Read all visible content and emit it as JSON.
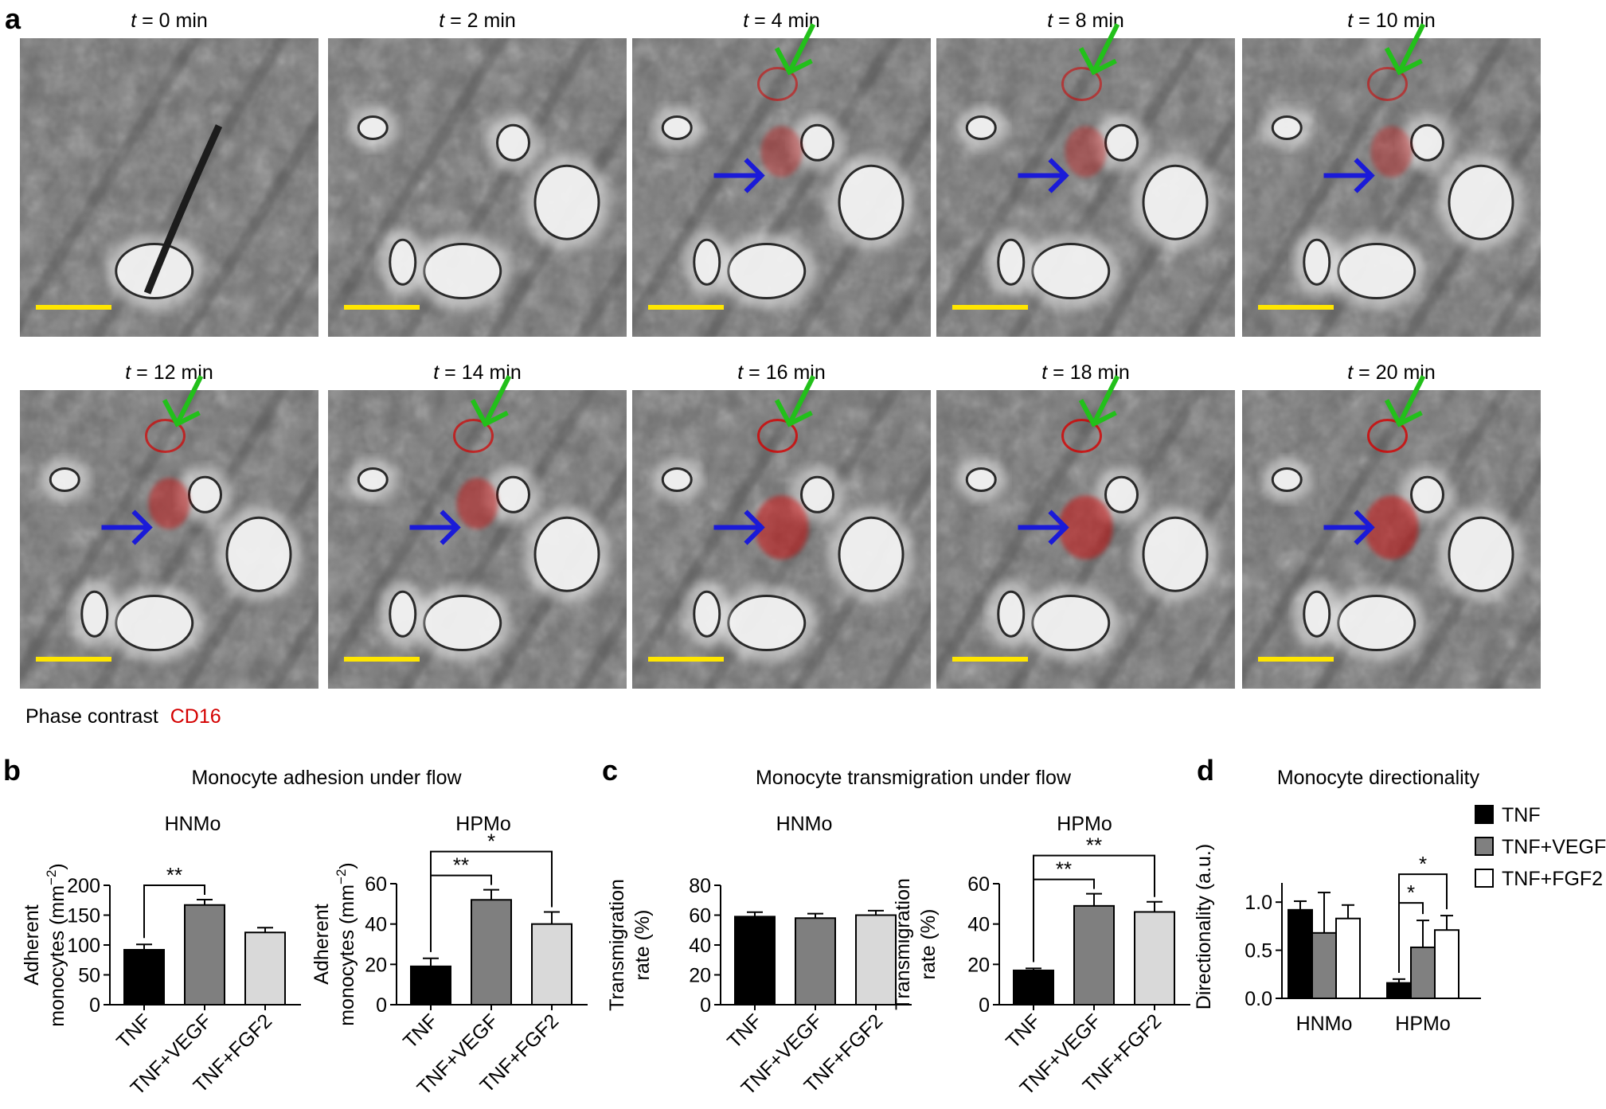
{
  "panel_letters": {
    "a": "a",
    "b": "b",
    "c": "c",
    "d": "d"
  },
  "microscopy": {
    "frames": [
      {
        "label_italic": "t",
        "label_rest": " = 0 min",
        "green_arrow": false,
        "blue_arrow": false,
        "red_level": 0
      },
      {
        "label_italic": "t",
        "label_rest": " = 2 min",
        "green_arrow": false,
        "blue_arrow": false,
        "red_level": 0
      },
      {
        "label_italic": "t",
        "label_rest": " = 4 min",
        "green_arrow": true,
        "blue_arrow": true,
        "red_level": 1
      },
      {
        "label_italic": "t",
        "label_rest": " = 8 min",
        "green_arrow": true,
        "blue_arrow": true,
        "red_level": 1
      },
      {
        "label_italic": "t",
        "label_rest": " = 10 min",
        "green_arrow": true,
        "blue_arrow": true,
        "red_level": 1
      },
      {
        "label_italic": "t",
        "label_rest": " = 12 min",
        "green_arrow": true,
        "blue_arrow": true,
        "red_level": 2
      },
      {
        "label_italic": "t",
        "label_rest": " = 14 min",
        "green_arrow": true,
        "blue_arrow": true,
        "red_level": 2
      },
      {
        "label_italic": "t",
        "label_rest": " = 16 min",
        "green_arrow": true,
        "blue_arrow": true,
        "red_level": 3
      },
      {
        "label_italic": "t",
        "label_rest": " = 18 min",
        "green_arrow": true,
        "blue_arrow": true,
        "red_level": 3
      },
      {
        "label_italic": "t",
        "label_rest": " = 20 min",
        "green_arrow": true,
        "blue_arrow": true,
        "red_level": 3
      }
    ],
    "caption_phase": "Phase contrast",
    "caption_marker": "CD16",
    "colors": {
      "marker": "#d40000",
      "green_arrow": "#22c01a",
      "blue_arrow": "#1a1ad8",
      "scale_bar": "#ffe600"
    }
  },
  "legend": {
    "items": [
      {
        "label": "TNF",
        "color": "#000000"
      },
      {
        "label": "TNF+VEGF",
        "color": "#808080"
      },
      {
        "label": "TNF+FGF2",
        "color": "#ffffff"
      }
    ]
  },
  "chart_data": [
    {
      "panel": "b",
      "type": "bar",
      "section_title": "Monocyte adhesion under flow",
      "title": "HNMo",
      "ylabel_lines": [
        "Adherent",
        "monocytes (mm"
      ],
      "ylabel_sup": "−2",
      "ylabel_close": ")",
      "categories": [
        "TNF",
        "TNF+VEGF",
        "TNF+FGF2"
      ],
      "colors": [
        "#000000",
        "#7f7f7f",
        "#d9d9d9"
      ],
      "values": [
        92,
        167,
        121
      ],
      "errors": [
        9,
        9,
        8
      ],
      "ylim": [
        0,
        200
      ],
      "yticks": [
        0,
        50,
        100,
        150,
        200
      ],
      "significance": [
        {
          "from": 0,
          "to": 1,
          "label": "**"
        }
      ]
    },
    {
      "panel": "b",
      "type": "bar",
      "title": "HPMo",
      "ylabel_lines": [
        "Adherent",
        "monocytes (mm"
      ],
      "ylabel_sup": "−2",
      "ylabel_close": ")",
      "categories": [
        "TNF",
        "TNF+VEGF",
        "TNF+FGF2"
      ],
      "colors": [
        "#000000",
        "#7f7f7f",
        "#d9d9d9"
      ],
      "values": [
        19,
        52,
        40
      ],
      "errors": [
        4,
        5,
        6
      ],
      "ylim": [
        0,
        60
      ],
      "yticks": [
        0,
        20,
        40,
        60
      ],
      "significance": [
        {
          "from": 0,
          "to": 1,
          "label": "**"
        },
        {
          "from": 0,
          "to": 2,
          "label": "*"
        }
      ]
    },
    {
      "panel": "c",
      "type": "bar",
      "section_title": "Monocyte transmigration under flow",
      "title": "HNMo",
      "ylabel_lines": [
        "Transmigration",
        "rate (%)"
      ],
      "categories": [
        "TNF",
        "TNF+VEGF",
        "TNF+FGF2"
      ],
      "colors": [
        "#000000",
        "#7f7f7f",
        "#d9d9d9"
      ],
      "values": [
        59,
        58,
        60
      ],
      "errors": [
        3,
        3,
        3
      ],
      "ylim": [
        0,
        80
      ],
      "yticks": [
        0,
        20,
        40,
        60,
        80
      ],
      "significance": []
    },
    {
      "panel": "c",
      "type": "bar",
      "title": "HPMo",
      "ylabel_lines": [
        "Transmigration",
        "rate (%)"
      ],
      "categories": [
        "TNF",
        "TNF+VEGF",
        "TNF+FGF2"
      ],
      "colors": [
        "#000000",
        "#7f7f7f",
        "#d9d9d9"
      ],
      "values": [
        17,
        49,
        46
      ],
      "errors": [
        1,
        6,
        5
      ],
      "ylim": [
        0,
        60
      ],
      "yticks": [
        0,
        20,
        40,
        60
      ],
      "significance": [
        {
          "from": 0,
          "to": 1,
          "label": "**"
        },
        {
          "from": 0,
          "to": 2,
          "label": "**"
        }
      ]
    },
    {
      "panel": "d",
      "type": "bar",
      "section_title": "Monocyte directionality",
      "ylabel": "Directionality (a.u.)",
      "categories": [
        "HNMo",
        "HPMo"
      ],
      "series": [
        {
          "name": "TNF",
          "color": "#000000",
          "values": [
            0.92,
            0.16
          ],
          "errors": [
            0.09,
            0.04
          ]
        },
        {
          "name": "TNF+VEGF",
          "color": "#808080",
          "values": [
            0.68,
            0.53
          ],
          "errors": [
            0.42,
            0.28
          ]
        },
        {
          "name": "TNF+FGF2",
          "color": "#ffffff",
          "values": [
            0.83,
            0.71
          ],
          "errors": [
            0.14,
            0.15
          ]
        }
      ],
      "ylim": [
        0,
        1.2
      ],
      "yticks": [
        0.0,
        0.5,
        1.0
      ],
      "ytick_labels": [
        "0.0",
        "0.5",
        "1.0"
      ],
      "significance": [
        {
          "group": 1,
          "from": 0,
          "to": 1,
          "label": "*"
        },
        {
          "group": 1,
          "from": 0,
          "to": 2,
          "label": "*"
        }
      ]
    }
  ]
}
